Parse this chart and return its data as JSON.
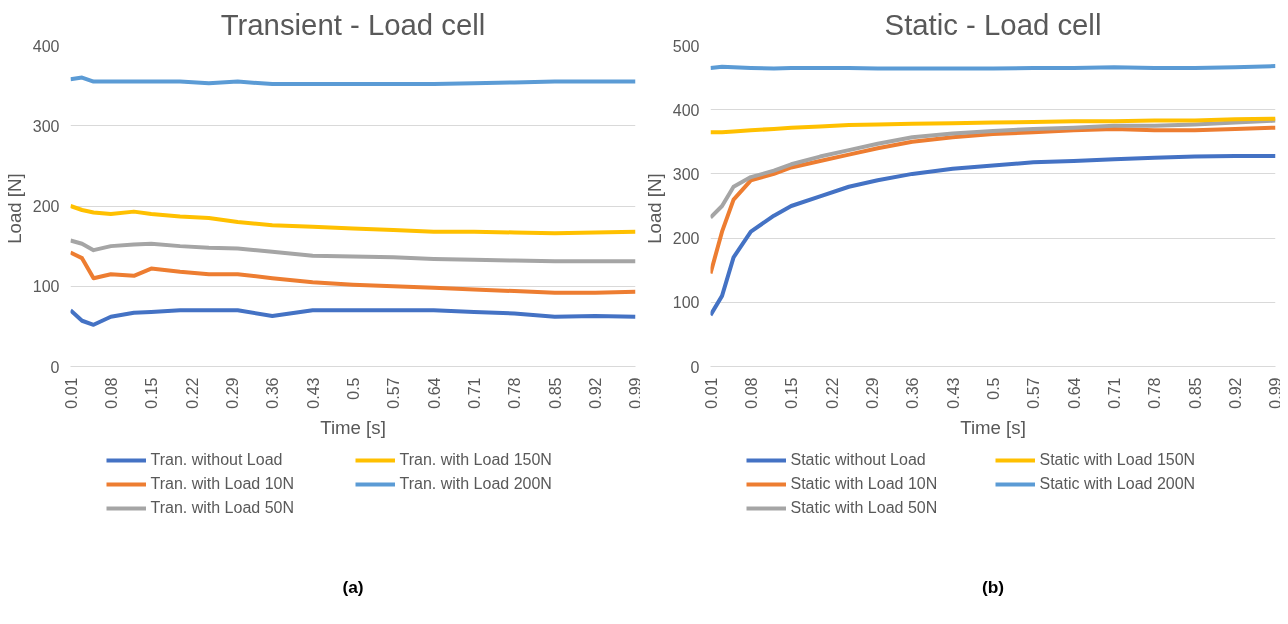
{
  "chart_data": [
    {
      "type": "line",
      "title": "Transient - Load cell",
      "xlabel": "Time [s]",
      "ylabel": "Load  [N]",
      "x": [
        0.01,
        0.03,
        0.05,
        0.08,
        0.12,
        0.15,
        0.2,
        0.25,
        0.3,
        0.36,
        0.43,
        0.5,
        0.57,
        0.64,
        0.71,
        0.78,
        0.85,
        0.92,
        0.99
      ],
      "xlim": [
        0.01,
        0.99
      ],
      "xticks": [
        0.01,
        0.08,
        0.15,
        0.22,
        0.29,
        0.36,
        0.43,
        0.5,
        0.57,
        0.64,
        0.71,
        0.78,
        0.85,
        0.92,
        0.99
      ],
      "ylim": [
        0,
        400
      ],
      "yticks": [
        0,
        100,
        200,
        300,
        400
      ],
      "grid": "y",
      "legend": "bottom",
      "marker": "none",
      "line_style": "solid",
      "annotations": [
        "(a)"
      ],
      "series": [
        {
          "name": "Tran. without Load",
          "color": "#4472c4",
          "values": [
            70,
            57,
            52,
            62,
            67,
            68,
            70,
            70,
            70,
            63,
            70,
            70,
            70,
            70,
            68,
            66,
            62,
            63,
            62
          ]
        },
        {
          "name": "Tran. with Load 10N",
          "color": "#ed7d31",
          "values": [
            142,
            135,
            110,
            115,
            113,
            122,
            118,
            115,
            115,
            110,
            105,
            102,
            100,
            98,
            96,
            94,
            92,
            92,
            93
          ]
        },
        {
          "name": "Tran. with Load 50N",
          "color": "#a5a5a5",
          "values": [
            157,
            153,
            145,
            150,
            152,
            153,
            150,
            148,
            147,
            143,
            138,
            137,
            136,
            134,
            133,
            132,
            131,
            131,
            131
          ]
        },
        {
          "name": "Tran. with Load 150N",
          "color": "#ffc000",
          "values": [
            200,
            195,
            192,
            190,
            193,
            190,
            187,
            185,
            180,
            176,
            174,
            172,
            170,
            168,
            168,
            167,
            166,
            167,
            168
          ]
        },
        {
          "name": "Tran. with Load 200N",
          "color": "#5b9bd5",
          "values": [
            358,
            360,
            355,
            355,
            355,
            355,
            355,
            353,
            355,
            352,
            352,
            352,
            352,
            352,
            353,
            354,
            355,
            355,
            355
          ]
        }
      ]
    },
    {
      "type": "line",
      "title": "Static - Load cell",
      "xlabel": "Time [s]",
      "ylabel": "Load  [N]",
      "x": [
        0.01,
        0.03,
        0.05,
        0.08,
        0.12,
        0.15,
        0.2,
        0.25,
        0.3,
        0.36,
        0.43,
        0.5,
        0.57,
        0.64,
        0.71,
        0.78,
        0.85,
        0.92,
        0.99
      ],
      "xlim": [
        0.01,
        0.99
      ],
      "xticks": [
        0.01,
        0.08,
        0.15,
        0.22,
        0.29,
        0.36,
        0.43,
        0.5,
        0.57,
        0.64,
        0.71,
        0.78,
        0.85,
        0.92,
        0.99
      ],
      "ylim": [
        0,
        500
      ],
      "yticks": [
        0,
        100,
        200,
        300,
        400,
        500
      ],
      "grid": "y",
      "legend": "bottom",
      "marker": "none",
      "line_style": "solid",
      "annotations": [
        "(b)"
      ],
      "series": [
        {
          "name": "Static without Load",
          "color": "#4472c4",
          "values": [
            80,
            110,
            170,
            210,
            235,
            250,
            265,
            280,
            290,
            300,
            308,
            313,
            318,
            320,
            323,
            325,
            327,
            328,
            328
          ]
        },
        {
          "name": "Static with Load 10N",
          "color": "#ed7d31",
          "values": [
            145,
            210,
            260,
            290,
            300,
            310,
            320,
            330,
            340,
            350,
            357,
            362,
            365,
            368,
            370,
            368,
            368,
            370,
            372
          ]
        },
        {
          "name": "Static with Load 50N",
          "color": "#a5a5a5",
          "values": [
            232,
            250,
            280,
            295,
            305,
            315,
            327,
            337,
            347,
            357,
            363,
            367,
            370,
            372,
            375,
            375,
            377,
            380,
            383
          ]
        },
        {
          "name": "Static with Load 150N",
          "color": "#ffc000",
          "values": [
            365,
            365,
            366,
            368,
            370,
            372,
            374,
            376,
            377,
            378,
            379,
            380,
            381,
            382,
            382,
            383,
            383,
            385,
            386
          ]
        },
        {
          "name": "Static with Load 200N",
          "color": "#5b9bd5",
          "values": [
            465,
            467,
            466,
            465,
            464,
            465,
            465,
            465,
            464,
            464,
            464,
            464,
            465,
            465,
            466,
            465,
            465,
            466,
            468
          ]
        }
      ]
    }
  ]
}
